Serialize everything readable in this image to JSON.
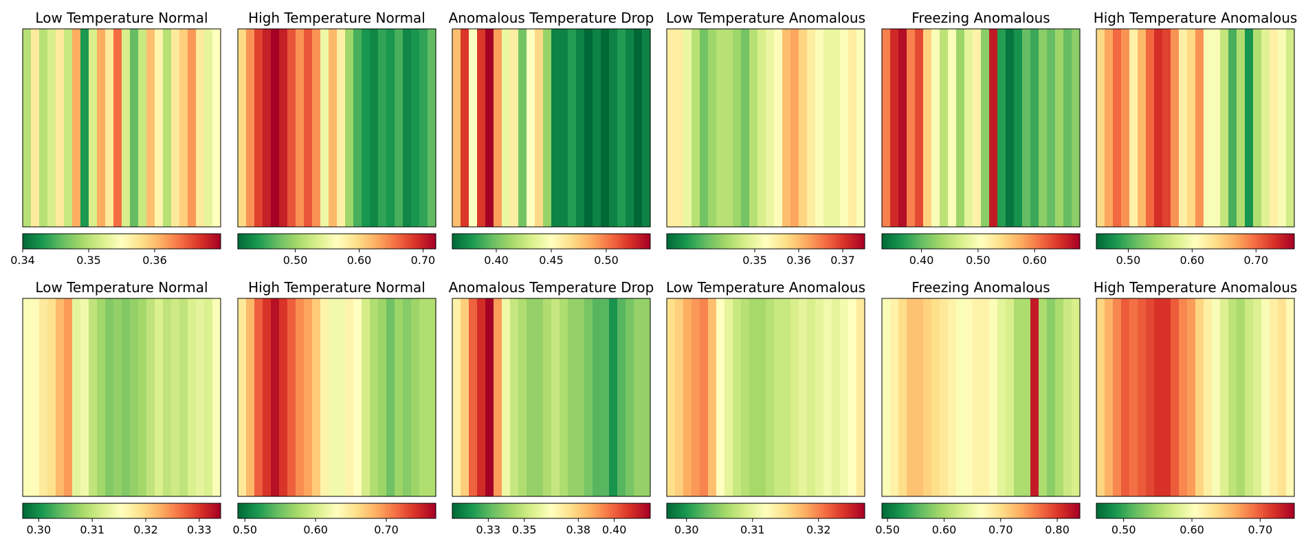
{
  "figure": {
    "rows": 2,
    "cols": 6,
    "colormap": "RdYlGn_r"
  },
  "chart_data": [
    {
      "type": "heatmap",
      "title": "Low Temperature Normal",
      "clim": [
        0.34,
        0.37
      ],
      "cbar_ticks": [
        0.34,
        0.35,
        0.36
      ],
      "cbar_tick_labels": [
        "0.34",
        "0.35",
        "0.36"
      ],
      "column_profile": [
        0.35,
        0.357,
        0.35,
        0.352,
        0.357,
        0.351,
        0.361,
        0.343,
        0.352,
        0.361,
        0.357,
        0.364,
        0.352,
        0.346,
        0.351,
        0.36,
        0.356,
        0.35,
        0.357,
        0.359,
        0.362,
        0.357,
        0.353,
        0.355
      ]
    },
    {
      "type": "heatmap",
      "title": "High Temperature Normal",
      "clim": [
        0.41,
        0.72
      ],
      "cbar_ticks": [
        0.5,
        0.6,
        0.7
      ],
      "cbar_tick_labels": [
        "0.50",
        "0.60",
        "0.70"
      ],
      "column_profile": [
        0.6,
        0.64,
        0.68,
        0.7,
        0.72,
        0.7,
        0.67,
        0.64,
        0.67,
        0.64,
        0.55,
        0.62,
        0.58,
        0.5,
        0.46,
        0.44,
        0.43,
        0.45,
        0.44,
        0.46,
        0.43,
        0.44,
        0.45,
        0.47
      ]
    },
    {
      "type": "heatmap",
      "title": "Anomalous Temperature Drop",
      "clim": [
        0.36,
        0.54
      ],
      "cbar_ticks": [
        0.4,
        0.45,
        0.5
      ],
      "cbar_tick_labels": [
        "0.40",
        "0.45",
        "0.50"
      ],
      "column_profile": [
        0.48,
        0.52,
        0.45,
        0.52,
        0.54,
        0.49,
        0.44,
        0.46,
        0.4,
        0.45,
        0.47,
        0.41,
        0.37,
        0.37,
        0.38,
        0.37,
        0.36,
        0.37,
        0.36,
        0.37,
        0.38,
        0.37,
        0.36,
        0.37
      ]
    },
    {
      "type": "heatmap",
      "title": "Low Temperature Anomalous",
      "clim": [
        0.33,
        0.375
      ],
      "cbar_ticks": [
        0.35,
        0.36,
        0.37
      ],
      "cbar_tick_labels": [
        "0.35",
        "0.36",
        "0.37"
      ],
      "column_profile": [
        0.355,
        0.355,
        0.35,
        0.345,
        0.34,
        0.343,
        0.345,
        0.345,
        0.343,
        0.34,
        0.345,
        0.348,
        0.35,
        0.353,
        0.36,
        0.362,
        0.358,
        0.355,
        0.352,
        0.35,
        0.35,
        0.352,
        0.355,
        0.352
      ]
    },
    {
      "type": "heatmap",
      "title": "Freezing Anomalous",
      "clim": [
        0.33,
        0.68
      ],
      "cbar_ticks": [
        0.4,
        0.5,
        0.6
      ],
      "cbar_tick_labels": [
        "0.40",
        "0.50",
        "0.60"
      ],
      "column_profile": [
        0.6,
        0.65,
        0.67,
        0.6,
        0.63,
        0.55,
        0.5,
        0.45,
        0.5,
        0.43,
        0.48,
        0.52,
        0.42,
        0.66,
        0.37,
        0.34,
        0.36,
        0.4,
        0.38,
        0.42,
        0.4,
        0.43,
        0.4,
        0.42
      ]
    },
    {
      "type": "heatmap",
      "title": "High Temperature Anomalous",
      "clim": [
        0.45,
        0.76
      ],
      "cbar_ticks": [
        0.5,
        0.6,
        0.7
      ],
      "cbar_tick_labels": [
        "0.50",
        "0.60",
        "0.70"
      ],
      "column_profile": [
        0.64,
        0.67,
        0.7,
        0.68,
        0.62,
        0.66,
        0.7,
        0.73,
        0.72,
        0.68,
        0.62,
        0.64,
        0.68,
        0.6,
        0.6,
        0.56,
        0.5,
        0.55,
        0.48,
        0.55,
        0.58,
        0.62,
        0.6,
        0.57
      ]
    },
    {
      "type": "heatmap",
      "title": "Low Temperature Normal",
      "clim": [
        0.297,
        0.334
      ],
      "cbar_ticks": [
        0.3,
        0.31,
        0.32,
        0.33
      ],
      "cbar_tick_labels": [
        "0.30",
        "0.31",
        "0.32",
        "0.33"
      ],
      "column_profile": [
        0.315,
        0.316,
        0.318,
        0.319,
        0.322,
        0.324,
        0.313,
        0.314,
        0.31,
        0.308,
        0.306,
        0.307,
        0.306,
        0.307,
        0.308,
        0.31,
        0.312,
        0.31,
        0.311,
        0.31,
        0.312,
        0.313,
        0.312,
        0.315
      ]
    },
    {
      "type": "heatmap",
      "title": "High Temperature Normal",
      "clim": [
        0.49,
        0.77
      ],
      "cbar_ticks": [
        0.5,
        0.6,
        0.7
      ],
      "cbar_tick_labels": [
        "0.50",
        "0.60",
        "0.70"
      ],
      "column_profile": [
        0.65,
        0.68,
        0.72,
        0.74,
        0.76,
        0.74,
        0.72,
        0.7,
        0.69,
        0.67,
        0.64,
        0.62,
        0.62,
        0.64,
        0.63,
        0.6,
        0.58,
        0.57,
        0.55,
        0.57,
        0.56,
        0.57,
        0.58,
        0.58
      ]
    },
    {
      "type": "heatmap",
      "title": "Anomalous Temperature Drop",
      "clim": [
        0.31,
        0.42
      ],
      "cbar_ticks": [
        0.33,
        0.35,
        0.38,
        0.4
      ],
      "cbar_tick_labels": [
        "0.33",
        "0.35",
        "0.38",
        "0.40"
      ],
      "column_profile": [
        0.37,
        0.38,
        0.4,
        0.41,
        0.42,
        0.39,
        0.36,
        0.35,
        0.345,
        0.34,
        0.34,
        0.345,
        0.35,
        0.345,
        0.34,
        0.34,
        0.335,
        0.33,
        0.33,
        0.32,
        0.33,
        0.335,
        0.34,
        0.34
      ]
    },
    {
      "type": "heatmap",
      "title": "Low Temperature Anomalous",
      "clim": [
        0.297,
        0.327
      ],
      "cbar_ticks": [
        0.3,
        0.31,
        0.32
      ],
      "cbar_tick_labels": [
        "0.30",
        "0.31",
        "0.32"
      ],
      "column_profile": [
        0.315,
        0.316,
        0.318,
        0.319,
        0.32,
        0.317,
        0.312,
        0.31,
        0.308,
        0.307,
        0.306,
        0.306,
        0.307,
        0.308,
        0.308,
        0.309,
        0.31,
        0.309,
        0.31,
        0.311,
        0.31,
        0.311,
        0.312,
        0.314
      ]
    },
    {
      "type": "heatmap",
      "title": "Freezing Anomalous",
      "clim": [
        0.49,
        0.84
      ],
      "cbar_ticks": [
        0.5,
        0.6,
        0.7,
        0.8
      ],
      "cbar_tick_labels": [
        "0.50",
        "0.60",
        "0.70",
        "0.80"
      ],
      "column_profile": [
        0.66,
        0.68,
        0.7,
        0.72,
        0.72,
        0.71,
        0.7,
        0.69,
        0.68,
        0.66,
        0.67,
        0.68,
        0.68,
        0.66,
        0.64,
        0.63,
        0.6,
        0.6,
        0.82,
        0.6,
        0.58,
        0.6,
        0.62,
        0.63
      ]
    },
    {
      "type": "heatmap",
      "title": "High Temperature Anomalous",
      "clim": [
        0.46,
        0.75
      ],
      "cbar_ticks": [
        0.5,
        0.6,
        0.7
      ],
      "cbar_tick_labels": [
        "0.50",
        "0.60",
        "0.70"
      ],
      "column_profile": [
        0.64,
        0.66,
        0.68,
        0.7,
        0.69,
        0.7,
        0.71,
        0.72,
        0.72,
        0.7,
        0.68,
        0.67,
        0.64,
        0.62,
        0.6,
        0.58,
        0.56,
        0.55,
        0.57,
        0.58,
        0.6,
        0.62,
        0.63,
        0.61
      ]
    }
  ]
}
